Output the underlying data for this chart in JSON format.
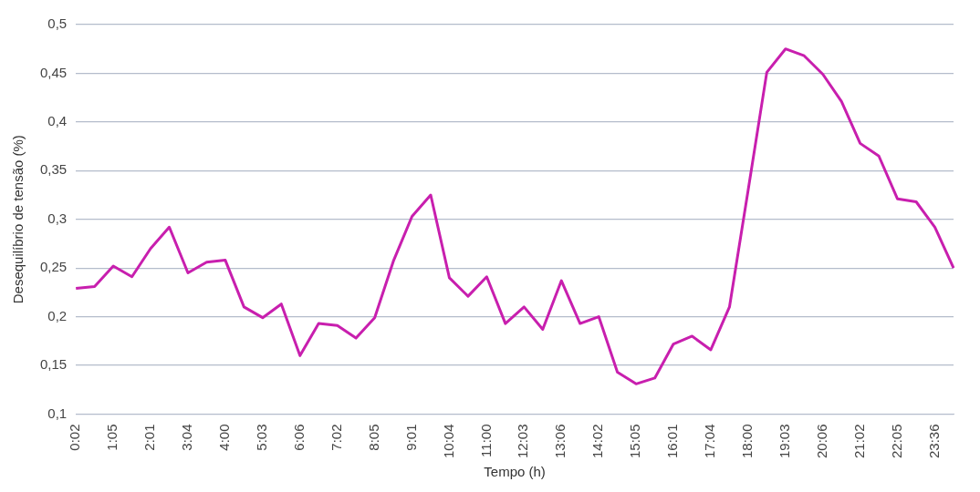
{
  "chart_data": {
    "type": "line",
    "xlabel": "Tempo (h)",
    "ylabel": "Desequilíbrio de tensão (%)",
    "categories": [
      "0:02",
      null,
      "1:05",
      null,
      "2:01",
      null,
      "3:04",
      null,
      "4:00",
      null,
      "5:03",
      null,
      "6:06",
      null,
      "7:02",
      null,
      "8:05",
      null,
      "9:01",
      null,
      "10:04",
      null,
      "11:00",
      null,
      "12:03",
      null,
      "13:06",
      null,
      "14:02",
      null,
      "15:05",
      null,
      "16:01",
      null,
      "17:04",
      null,
      "18:00",
      null,
      "19:03",
      null,
      "20:06",
      null,
      "21:02",
      null,
      "22:05",
      null,
      "23:36",
      null
    ],
    "series": [
      {
        "color": "#c81fae",
        "values": [
          0.229,
          0.231,
          0.252,
          0.241,
          0.27,
          0.292,
          0.245,
          0.256,
          0.258,
          0.21,
          0.199,
          0.213,
          0.16,
          0.193,
          0.191,
          0.178,
          0.199,
          0.257,
          0.303,
          0.325,
          0.24,
          0.221,
          0.241,
          0.193,
          0.21,
          0.187,
          0.237,
          0.193,
          0.2,
          0.143,
          0.131,
          0.137,
          0.172,
          0.18,
          0.166,
          0.21,
          0.33,
          0.451,
          0.475,
          0.468,
          0.449,
          0.421,
          0.378,
          0.365,
          0.321,
          0.318,
          0.292,
          0.25
        ]
      }
    ],
    "ylim": [
      0.1,
      0.5
    ],
    "yticks": [
      {
        "value": 0.1,
        "label": "0,1"
      },
      {
        "value": 0.15,
        "label": "0,15"
      },
      {
        "value": 0.2,
        "label": "0,2"
      },
      {
        "value": 0.25,
        "label": "0,25"
      },
      {
        "value": 0.3,
        "label": "0,3"
      },
      {
        "value": 0.35,
        "label": "0,35"
      },
      {
        "value": 0.4,
        "label": "0,4"
      },
      {
        "value": 0.45,
        "label": "0,45"
      },
      {
        "value": 0.5,
        "label": "0,5"
      }
    ],
    "grid": "y",
    "legend": false,
    "marker": "none",
    "line_style": "solid"
  }
}
